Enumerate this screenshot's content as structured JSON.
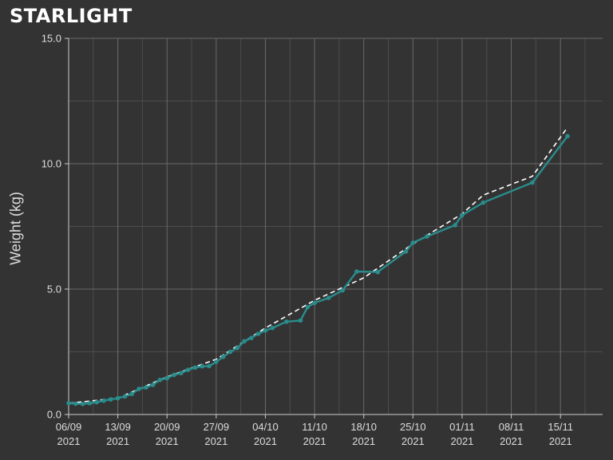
{
  "title": "STARLIGHT",
  "colors": {
    "background": "#333333",
    "grid": "#6a6a6a",
    "actual": "#2a8c8c",
    "projection": "#ffffff"
  },
  "chart_data": {
    "type": "line",
    "title": "STARLIGHT",
    "xlabel": "",
    "ylabel": "Weight (kg)",
    "xlim": [
      "2021-09-06",
      "2021-11-21"
    ],
    "ylim": [
      0,
      15
    ],
    "grid": true,
    "x_ticks": [
      "2021-09-06",
      "2021-09-13",
      "2021-09-20",
      "2021-09-27",
      "2021-10-04",
      "2021-10-11",
      "2021-10-18",
      "2021-10-25",
      "2021-11-01",
      "2021-11-08",
      "2021-11-15"
    ],
    "x_tick_labels": [
      [
        "06/09",
        "2021"
      ],
      [
        "13/09",
        "2021"
      ],
      [
        "20/09",
        "2021"
      ],
      [
        "27/09",
        "2021"
      ],
      [
        "04/10",
        "2021"
      ],
      [
        "11/10",
        "2021"
      ],
      [
        "18/10",
        "2021"
      ],
      [
        "25/10",
        "2021"
      ],
      [
        "01/11",
        "2021"
      ],
      [
        "08/11",
        "2021"
      ],
      [
        "15/11",
        "2021"
      ]
    ],
    "y_ticks": [
      0,
      5,
      10,
      15
    ],
    "y_tick_labels": [
      "0.0",
      "5.0",
      "10.0",
      "15.0"
    ],
    "series": [
      {
        "style": "solid-markers",
        "points": [
          [
            "2021-09-06",
            0.45
          ],
          [
            "2021-09-07",
            0.43
          ],
          [
            "2021-09-08",
            0.42
          ],
          [
            "2021-09-09",
            0.45
          ],
          [
            "2021-09-10",
            0.49
          ],
          [
            "2021-09-11",
            0.55
          ],
          [
            "2021-09-12",
            0.6
          ],
          [
            "2021-09-13",
            0.65
          ],
          [
            "2021-09-14",
            0.72
          ],
          [
            "2021-09-15",
            0.82
          ],
          [
            "2021-09-16",
            1.02
          ],
          [
            "2021-09-17",
            1.08
          ],
          [
            "2021-09-18",
            1.18
          ],
          [
            "2021-09-19",
            1.38
          ],
          [
            "2021-09-20",
            1.45
          ],
          [
            "2021-09-21",
            1.58
          ],
          [
            "2021-09-22",
            1.65
          ],
          [
            "2021-09-23",
            1.78
          ],
          [
            "2021-09-24",
            1.87
          ],
          [
            "2021-09-25",
            1.92
          ],
          [
            "2021-09-26",
            1.93
          ],
          [
            "2021-09-27",
            2.1
          ],
          [
            "2021-09-28",
            2.3
          ],
          [
            "2021-09-29",
            2.5
          ],
          [
            "2021-09-30",
            2.65
          ],
          [
            "2021-10-01",
            2.92
          ],
          [
            "2021-10-02",
            3.05
          ],
          [
            "2021-10-03",
            3.22
          ],
          [
            "2021-10-04",
            3.35
          ],
          [
            "2021-10-05",
            3.45
          ],
          [
            "2021-10-07",
            3.7
          ],
          [
            "2021-10-09",
            3.75
          ],
          [
            "2021-10-10",
            4.28
          ],
          [
            "2021-10-11",
            4.45
          ],
          [
            "2021-10-13",
            4.65
          ],
          [
            "2021-10-15",
            4.95
          ],
          [
            "2021-10-17",
            5.7
          ],
          [
            "2021-10-20",
            5.68
          ],
          [
            "2021-10-24",
            6.5
          ],
          [
            "2021-10-25",
            6.85
          ],
          [
            "2021-10-27",
            7.1
          ],
          [
            "2021-10-31",
            7.55
          ],
          [
            "2021-11-01",
            7.95
          ],
          [
            "2021-11-04",
            8.45
          ],
          [
            "2021-11-11",
            9.25
          ],
          [
            "2021-11-16",
            11.1
          ]
        ]
      },
      {
        "style": "dashed",
        "points": [
          [
            "2021-09-06",
            0.45
          ],
          [
            "2021-09-13",
            0.65
          ],
          [
            "2021-09-20",
            1.5
          ],
          [
            "2021-09-27",
            2.2
          ],
          [
            "2021-10-04",
            3.45
          ],
          [
            "2021-10-11",
            4.55
          ],
          [
            "2021-10-18",
            5.45
          ],
          [
            "2021-10-25",
            6.8
          ],
          [
            "2021-11-01",
            8.0
          ],
          [
            "2021-11-04",
            8.75
          ],
          [
            "2021-11-11",
            9.5
          ],
          [
            "2021-11-16",
            11.45
          ]
        ]
      }
    ]
  }
}
